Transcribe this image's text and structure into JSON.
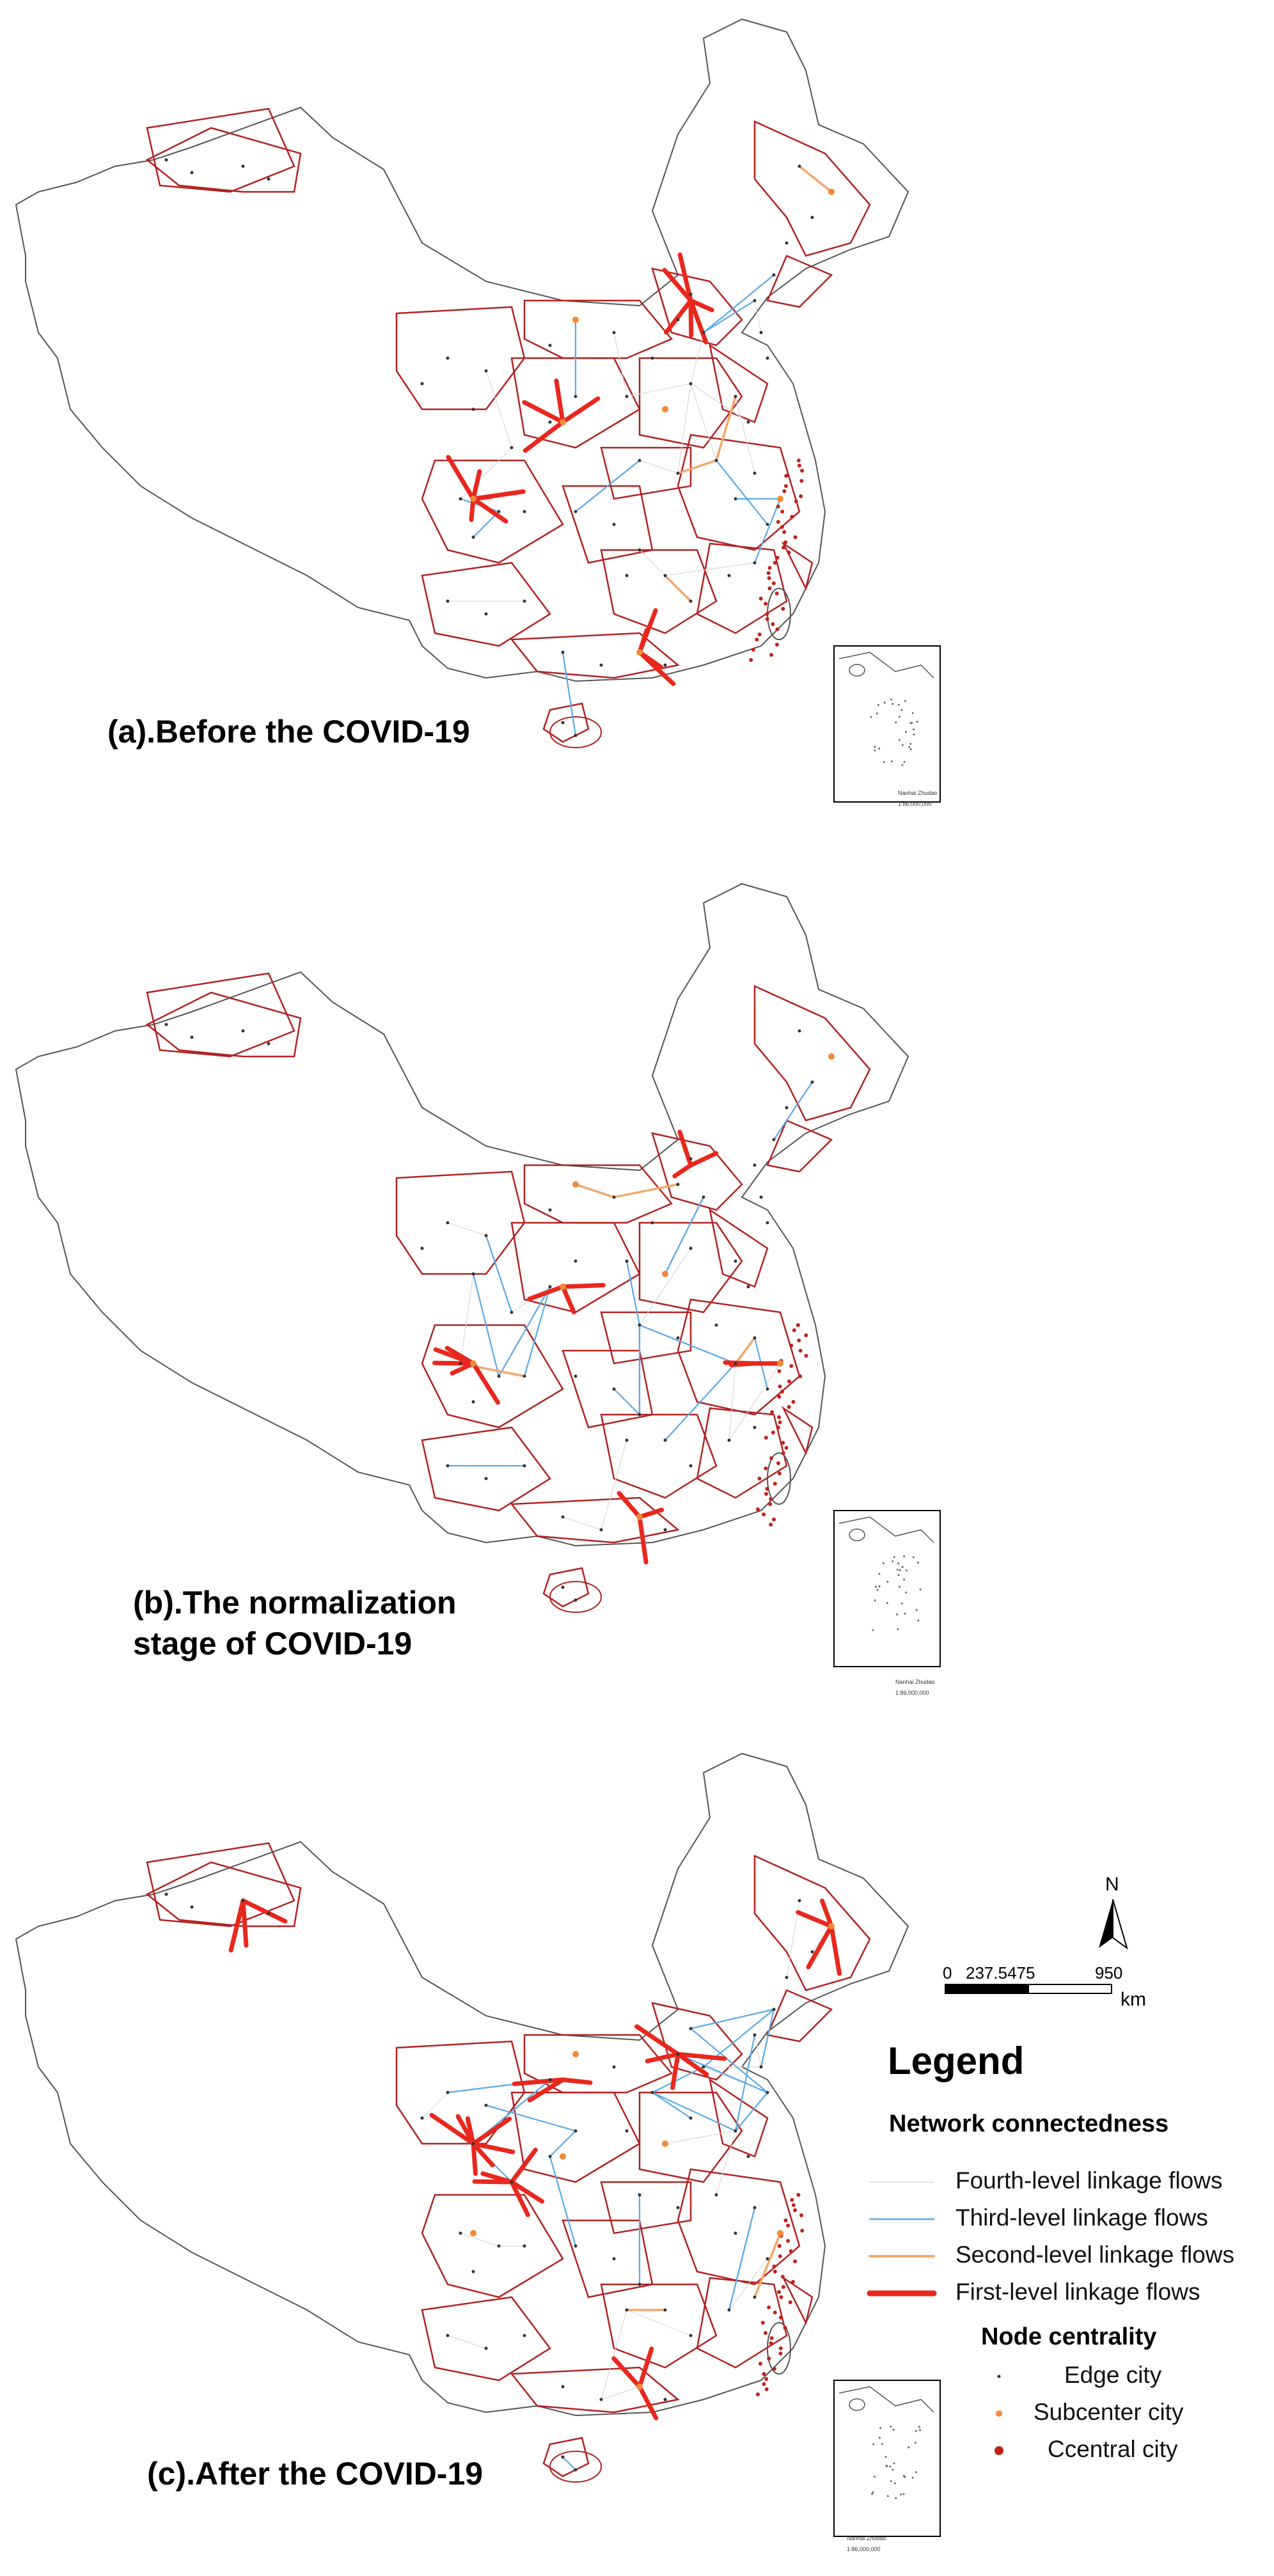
{
  "panels": [
    {
      "id": "a",
      "title_lines": [
        "(a).Before the COVID-19"
      ]
    },
    {
      "id": "b",
      "title_lines": [
        "(b).The normalization",
        "stage of COVID-19"
      ]
    },
    {
      "id": "c",
      "title_lines": [
        "(c).After the COVID-19"
      ]
    }
  ],
  "inset": {
    "scale_text": "1:86,000,000",
    "caption": "Nanhai Zhudao"
  },
  "north_arrow": {
    "label": "N"
  },
  "scale_bar": {
    "labels": [
      "0",
      "237.5475",
      "950"
    ],
    "unit": "km"
  },
  "legend": {
    "title": "Legend",
    "flows_heading": "Network connectedness",
    "flows": [
      {
        "label": "Fourth-level linkage flows",
        "color": "#d9d9d9"
      },
      {
        "label": "Third-level linkage flows",
        "color": "#5aa9e6"
      },
      {
        "label": "Second-level linkage flows",
        "color": "#f5a76a"
      },
      {
        "label": "First-level linkage flows",
        "color": "#e8281e"
      }
    ],
    "nodes_heading": "Node centrality",
    "nodes": [
      {
        "label": "Edge city",
        "color": "#333333"
      },
      {
        "label": "Subcenter city",
        "color": "#f08a3a"
      },
      {
        "label": "Ccentral city",
        "color": "#c0221a"
      }
    ]
  },
  "colors": {
    "province_border": "#b22222",
    "country_border": "#555555"
  }
}
